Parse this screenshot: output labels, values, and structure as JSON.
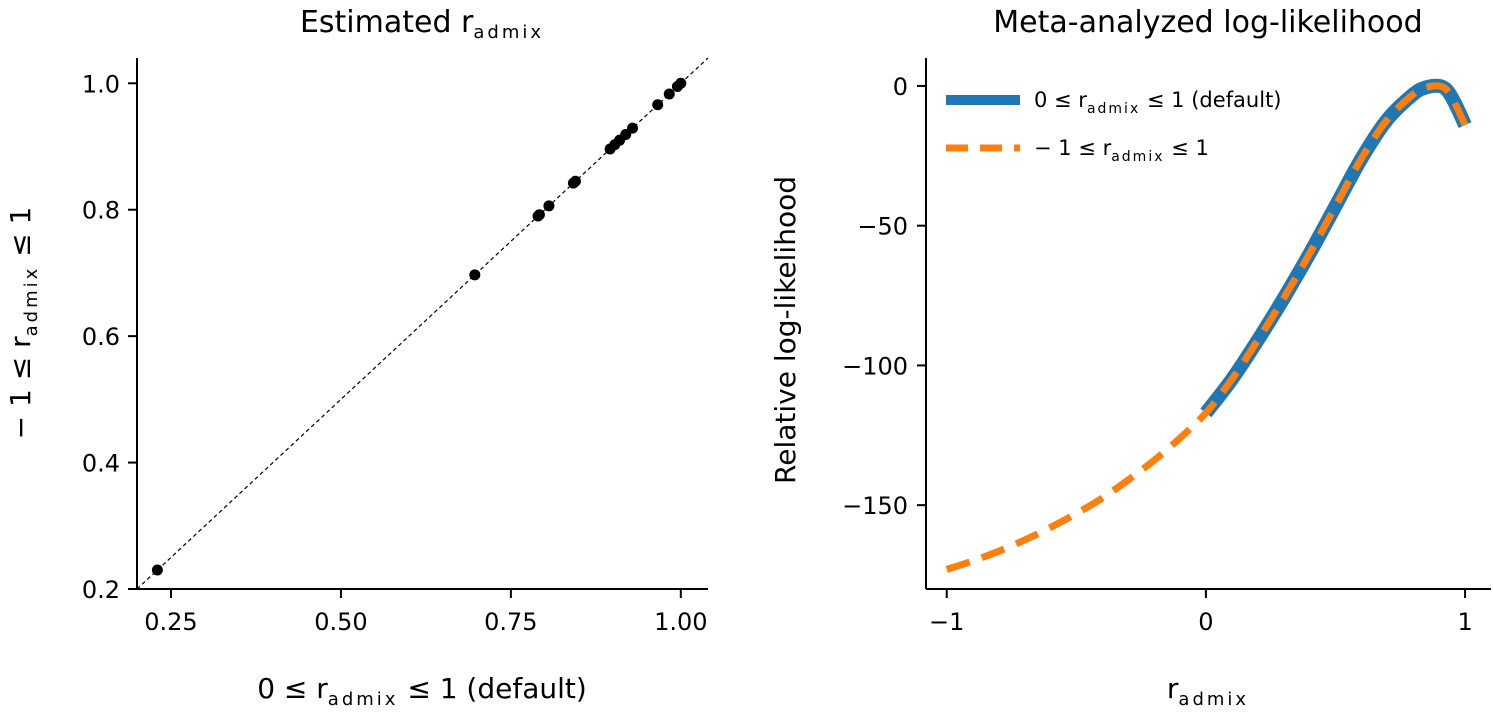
{
  "chart_data": [
    {
      "type": "scatter",
      "title": "Estimated r",
      "title_sub": "admix",
      "xlabel": {
        "pre": "0 ≤ r",
        "sub": "admix",
        "post": " ≤ 1 (default)"
      },
      "ylabel": {
        "pre": "− 1 ≤ r",
        "sub": "admix",
        "post": " ≤ 1"
      },
      "xlim": [
        0.2,
        1.04
      ],
      "ylim": [
        0.2,
        1.04
      ],
      "xticks": [
        "0.25",
        "0.50",
        "0.75",
        "1.00"
      ],
      "yticks": [
        "0.2",
        "0.4",
        "0.6",
        "0.8",
        "1.0"
      ],
      "identity_line": true,
      "points": [
        {
          "x": 0.23,
          "y": 0.23
        },
        {
          "x": 0.697,
          "y": 0.697
        },
        {
          "x": 0.79,
          "y": 0.79
        },
        {
          "x": 0.792,
          "y": 0.792
        },
        {
          "x": 0.806,
          "y": 0.806
        },
        {
          "x": 0.842,
          "y": 0.842
        },
        {
          "x": 0.845,
          "y": 0.845
        },
        {
          "x": 0.896,
          "y": 0.896
        },
        {
          "x": 0.903,
          "y": 0.903
        },
        {
          "x": 0.91,
          "y": 0.91
        },
        {
          "x": 0.919,
          "y": 0.919
        },
        {
          "x": 0.929,
          "y": 0.929
        },
        {
          "x": 0.966,
          "y": 0.966
        },
        {
          "x": 0.983,
          "y": 0.983
        },
        {
          "x": 0.995,
          "y": 0.995
        },
        {
          "x": 1.0,
          "y": 1.0
        }
      ],
      "point_color": "#000000"
    },
    {
      "type": "line",
      "title": "Meta-analyzed log-likelihood",
      "xlabel": {
        "pre": "r",
        "sub": "admix",
        "post": ""
      },
      "ylabel": "Relative log-likelihood",
      "xlim": [
        -1.08,
        1.1
      ],
      "ylim": [
        -180,
        10
      ],
      "xticks": [
        "−1",
        "0",
        "1"
      ],
      "yticks": [
        "0",
        "−50",
        "−100",
        "−150"
      ],
      "legend_position": "top-left",
      "series": [
        {
          "name": {
            "pre": "0 ≤ r",
            "sub": "admix",
            "post": " ≤ 1 (default)"
          },
          "color": "#1f77b4",
          "style": "solid",
          "x": [
            0.0,
            0.1,
            0.2,
            0.3,
            0.4,
            0.5,
            0.6,
            0.7,
            0.8,
            0.85,
            0.9,
            0.93,
            0.96,
            1.0
          ],
          "y": [
            -117,
            -105,
            -91,
            -76,
            -60,
            -43,
            -26,
            -12,
            -3,
            -0.5,
            0,
            -1.5,
            -6,
            -14
          ]
        },
        {
          "name": {
            "pre": "− 1 ≤ r",
            "sub": "admix",
            "post": " ≤ 1"
          },
          "color": "#ff7f0e",
          "style": "dashed",
          "x": [
            -1.0,
            -0.9,
            -0.8,
            -0.7,
            -0.6,
            -0.5,
            -0.4,
            -0.3,
            -0.2,
            -0.1,
            0.0,
            0.1,
            0.2,
            0.3,
            0.4,
            0.5,
            0.6,
            0.7,
            0.8,
            0.85,
            0.9,
            0.93,
            0.96,
            1.0
          ],
          "y": [
            -173,
            -170,
            -166.5,
            -162.5,
            -158,
            -153,
            -147.5,
            -141,
            -134,
            -126,
            -117,
            -105,
            -91,
            -76,
            -60,
            -43,
            -26,
            -12,
            -3,
            -0.5,
            0,
            -1.5,
            -6,
            -14
          ]
        }
      ]
    }
  ]
}
